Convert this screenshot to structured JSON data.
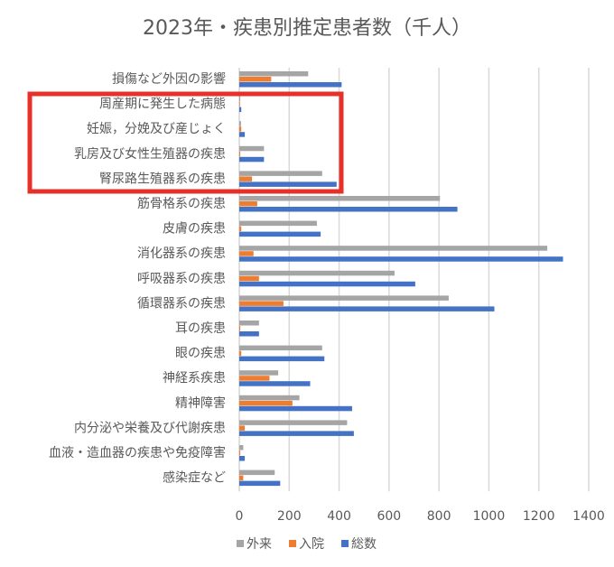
{
  "chart_data": {
    "type": "bar",
    "orientation": "horizontal",
    "title": "2023年・疾患別推定患者数（千人）",
    "categories": [
      "損傷など外因の影響",
      "周産期に発生した病態",
      "妊娠，分娩及び産じょく",
      "乳房及び女性生殖器の疾患",
      "腎尿路生殖器系の疾患",
      "筋骨格系の疾患",
      "皮膚の疾患",
      "消化器系の疾患",
      "呼吸器系の疾患",
      "循環器系の疾患",
      "耳の疾患",
      "眼の疾患",
      "神経系疾患",
      "精神障害",
      "内分泌や栄養及び代謝疾患",
      "血液・造血器の疾患や免疫障害",
      "感染症など"
    ],
    "series": [
      {
        "name": "外来",
        "color": "#a5a5a5",
        "values": [
          276,
          4,
          7,
          99,
          332,
          804,
          311,
          1234,
          622,
          839,
          79,
          332,
          156,
          241,
          432,
          16,
          142
        ]
      },
      {
        "name": "入院",
        "color": "#ed7d31",
        "values": [
          128,
          2,
          8,
          4,
          51,
          72,
          8,
          57,
          79,
          177,
          4,
          8,
          121,
          213,
          22,
          4,
          16
        ]
      },
      {
        "name": "総数",
        "color": "#4472c4",
        "values": [
          410,
          8,
          22,
          99,
          390,
          874,
          326,
          1297,
          705,
          1022,
          79,
          341,
          284,
          452,
          459,
          22,
          164
        ]
      }
    ],
    "xlim": [
      0,
      1400
    ],
    "xticks": [
      "0",
      "200",
      "400",
      "600",
      "800",
      "1000",
      "1200",
      "1400"
    ],
    "grid": true,
    "legend_position": "bottom",
    "highlight_color": "#e8302a"
  }
}
